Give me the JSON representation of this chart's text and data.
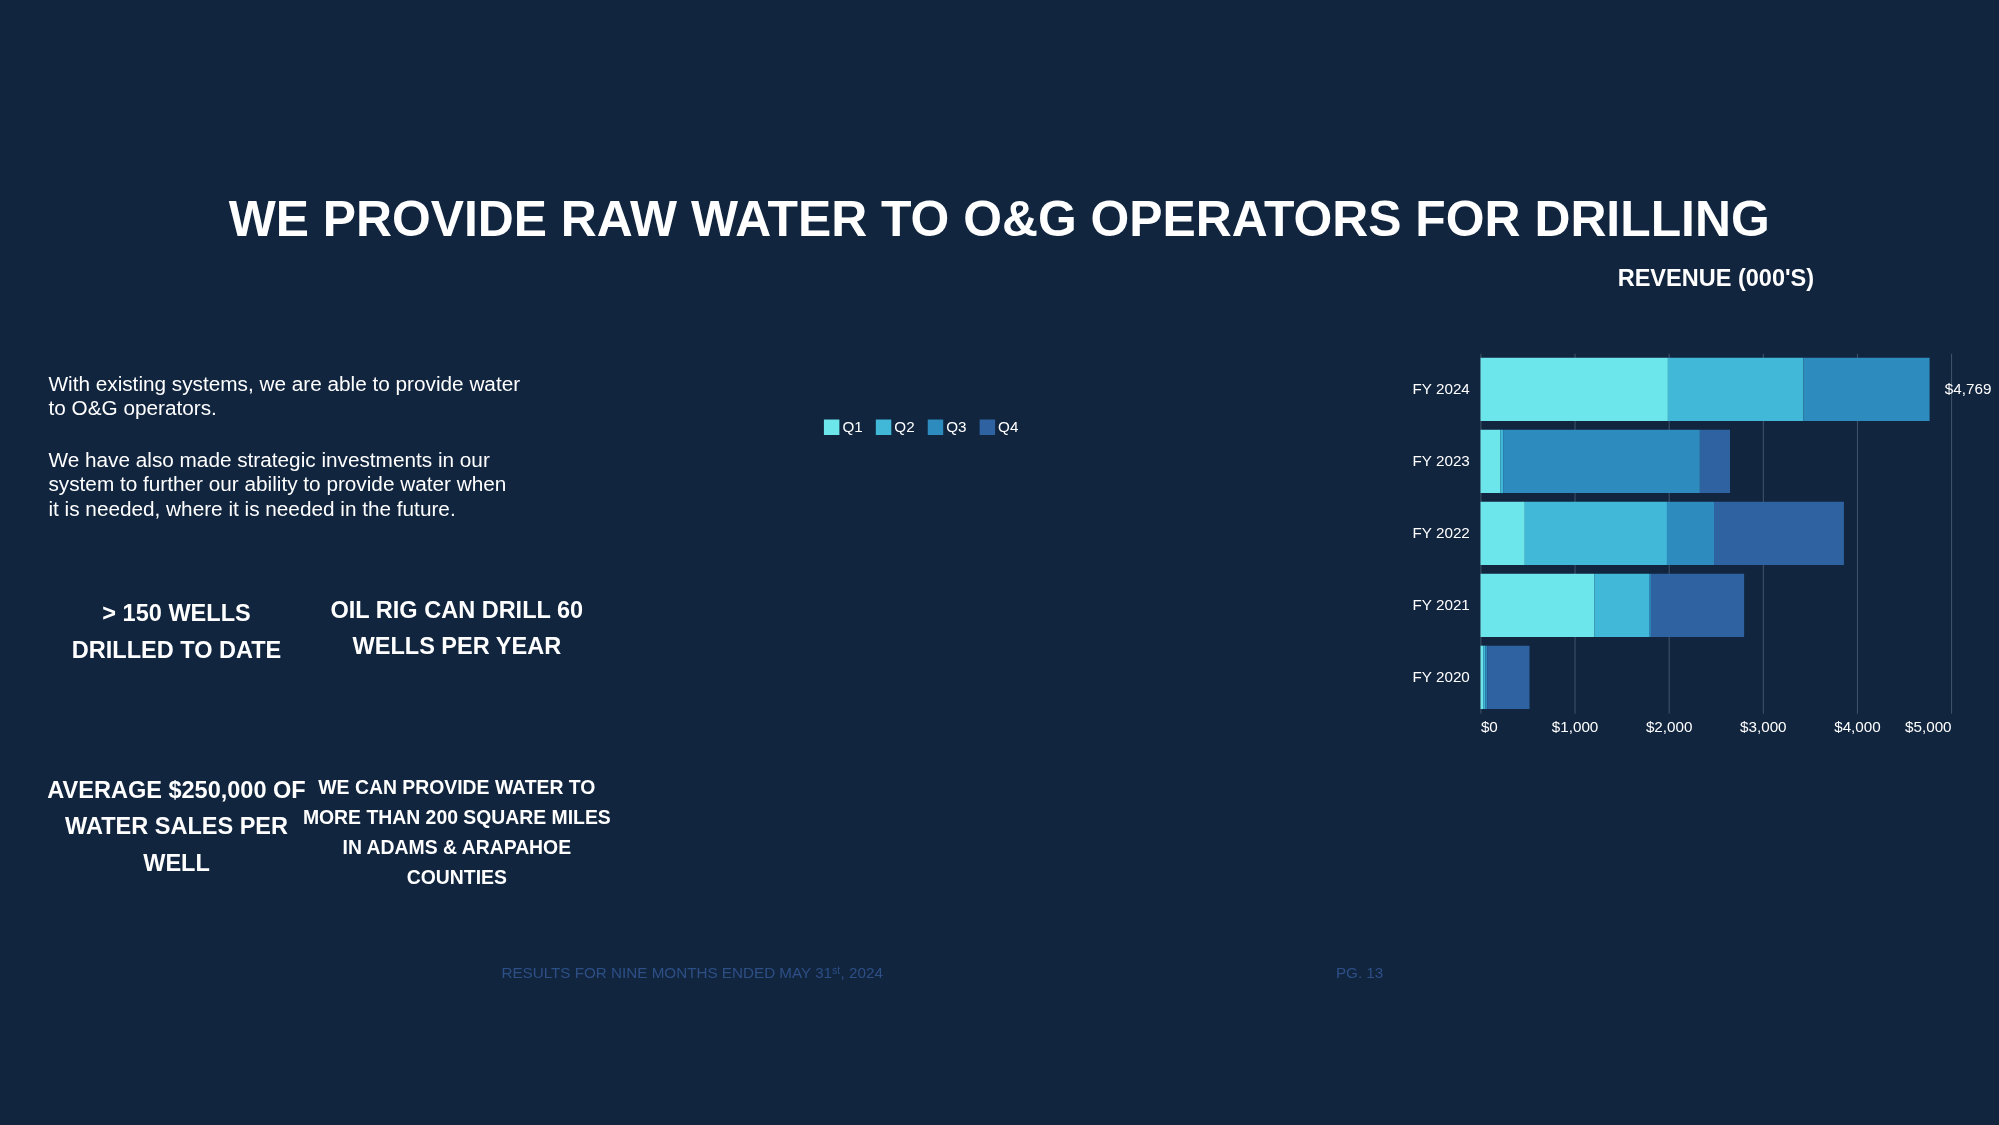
{
  "chart_data": {
    "type": "bar",
    "orientation": "horizontal",
    "stacked": true,
    "title": "WE PROVIDE RAW WATER TO O&G OPERATORS FOR DRILLING",
    "subtitle": "REVENUE (000'S)",
    "categories": [
      "FY 2024",
      "FY 2023",
      "FY 2022",
      "FY 2021",
      "FY 2020"
    ],
    "series": [
      {
        "name": "Q1",
        "color": "#6ce6ea",
        "values": [
          1990,
          210,
          470,
          1210,
          30
        ]
      },
      {
        "name": "Q2",
        "color": "#42b8d8",
        "values": [
          1440,
          30,
          1510,
          580,
          20
        ]
      },
      {
        "name": "Q3",
        "color": "#2e8bbd",
        "values": [
          1340,
          2090,
          500,
          20,
          20
        ]
      },
      {
        "name": "Q4",
        "color": "#2e62a0",
        "values": [
          null,
          320,
          1380,
          990,
          450
        ]
      }
    ],
    "xlim": [
      0,
      5000
    ],
    "xticks": [
      {
        "value": 0,
        "label": "$0"
      },
      {
        "value": 1000,
        "label": "$1,000"
      },
      {
        "value": 2000,
        "label": "$2,000"
      },
      {
        "value": 3000,
        "label": "$3,000"
      },
      {
        "value": 4000,
        "label": "$4,000"
      },
      {
        "value": 5000,
        "label": "$5,000"
      }
    ],
    "totals": [
      "$4,769",
      null,
      null,
      null,
      null
    ],
    "grid": "x",
    "legend": "top",
    "annotations": [
      "With existing systems, we are able to provide water to O&G operators.",
      "We have also made strategic investments in our system to further our ability to provide water when it is needed, where it is needed in the future.",
      "> 150 WELLS DRILLED TO DATE",
      "OIL RIG CAN DRILL 60 WELLS PER YEAR",
      "AVERAGE $250,000 OF WATER SALES PER WELL",
      "WE CAN PROVIDE WATER TO MORE THAN 200 SQUARE MILES IN ADAMS & ARAPAHOE COUNTIES",
      "RESULTS FOR NINE MONTHS ENDED MAY 31ˢᵗ, 2024",
      "PG. 13"
    ]
  }
}
